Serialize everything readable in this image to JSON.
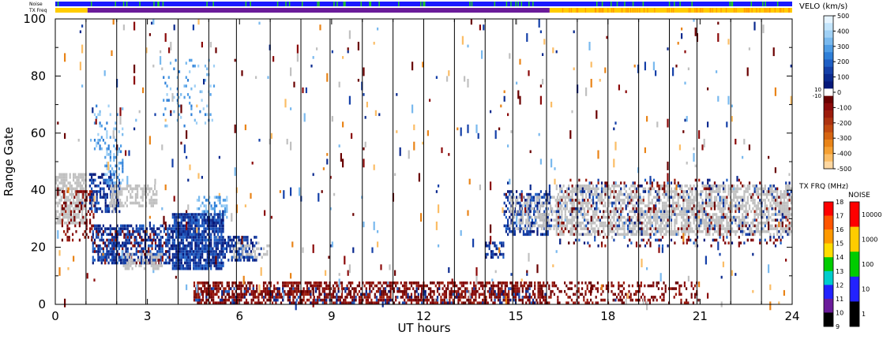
{
  "chart_data": {
    "type": "heatmap",
    "xlabel": "UT hours",
    "ylabel": "Range Gate",
    "xlim": [
      0,
      24
    ],
    "ylim": [
      0,
      100
    ],
    "x_ticks": [
      0,
      3,
      6,
      9,
      12,
      15,
      18,
      21,
      24
    ],
    "y_ticks": [
      0,
      20,
      40,
      60,
      80,
      100
    ],
    "strips": [
      {
        "name": "Noise",
        "colors": [
          "#1a1aff",
          "#22cc22"
        ],
        "segments": [
          [
            0,
            24,
            "#1a1aff"
          ]
        ]
      },
      {
        "name": "TX Freq",
        "segments": [
          [
            0,
            1.05,
            "#ffcc00"
          ],
          [
            1.05,
            16.1,
            "#6a1b9a"
          ],
          [
            16.1,
            24,
            "#ffcc00"
          ]
        ]
      }
    ],
    "velocity_colorbar": {
      "title": "VELO (km/s)",
      "ticks": [
        500,
        400,
        300,
        200,
        100,
        0,
        -100,
        -200,
        -300,
        -400,
        -500
      ],
      "near_zero_labels": [
        "10",
        "-10"
      ],
      "colors_top_to_bottom": [
        "#e6f4ff",
        "#c2e4fb",
        "#9fd0f5",
        "#79b9ee",
        "#4f9de5",
        "#2f7fd8",
        "#1f5fc4",
        "#1540a8",
        "#0b2a8f",
        "#06187a",
        "#ffffff",
        "#6a0000",
        "#8b0a0a",
        "#9c1c0c",
        "#ad3310",
        "#c24a10",
        "#d66512",
        "#e98418",
        "#f5a033",
        "#fbbd66",
        "#fdd7a0"
      ]
    },
    "tx_freq_colorbar": {
      "title": "TX FRQ (MHz)",
      "ticks": [
        18,
        17,
        16,
        15,
        14,
        13,
        12,
        11,
        10,
        9
      ],
      "colors_top_to_bottom": [
        "#ff0000",
        "#ff5500",
        "#ff9900",
        "#ffdd00",
        "#00cc00",
        "#00cccc",
        "#2222ff",
        "#6a1b9a",
        "#000000"
      ]
    },
    "noise_colorbar": {
      "title": "NOISE",
      "ticks": [
        "10000",
        "1000",
        "100",
        "10",
        "1"
      ],
      "colors_top_to_bottom": [
        "#ff0000",
        "#ffcc00",
        "#00cc00",
        "#2222ff",
        "#000000"
      ]
    },
    "scan_boundaries_ut": [
      1.0,
      2.0,
      2.95,
      4.0,
      5.0,
      5.9,
      7.0,
      8.0,
      8.95,
      10.0,
      11.0,
      12.0,
      13.0,
      14.0,
      14.9,
      16.0,
      17.0,
      18.0,
      19.0,
      20.0,
      20.9,
      22.0,
      23.0
    ],
    "echo_regions": [
      {
        "x": [
          0.0,
          1.0
        ],
        "y": [
          28,
          46
        ],
        "kind": "ground-scatter",
        "density": 0.7
      },
      {
        "x": [
          0.2,
          1.3
        ],
        "y": [
          22,
          40
        ],
        "kind": "velocity-negative",
        "density": 0.35
      },
      {
        "x": [
          1.1,
          2.1
        ],
        "y": [
          32,
          46
        ],
        "kind": "velocity-positive",
        "density": 0.55
      },
      {
        "x": [
          1.8,
          3.3
        ],
        "y": [
          34,
          42
        ],
        "kind": "ground-scatter",
        "density": 0.55
      },
      {
        "x": [
          1.6,
          2.2
        ],
        "y": [
          42,
          56
        ],
        "kind": "velocity-positive-light",
        "density": 0.4
      },
      {
        "x": [
          1.2,
          3.8
        ],
        "y": [
          14,
          28
        ],
        "kind": "velocity-positive",
        "density": 0.6
      },
      {
        "x": [
          1.2,
          3.8
        ],
        "y": [
          14,
          26
        ],
        "kind": "velocity-negative",
        "density": 0.12
      },
      {
        "x": [
          2.2,
          3.5
        ],
        "y": [
          12,
          18
        ],
        "kind": "ground-scatter",
        "density": 0.45
      },
      {
        "x": [
          3.8,
          5.5
        ],
        "y": [
          12,
          32
        ],
        "kind": "velocity-positive",
        "density": 0.85
      },
      {
        "x": [
          4.6,
          5.6
        ],
        "y": [
          30,
          38
        ],
        "kind": "velocity-positive-light",
        "density": 0.4
      },
      {
        "x": [
          5.5,
          6.6
        ],
        "y": [
          15,
          24
        ],
        "kind": "velocity-positive",
        "density": 0.55
      },
      {
        "x": [
          5.8,
          7.0
        ],
        "y": [
          16,
          22
        ],
        "kind": "ground-scatter",
        "density": 0.35
      },
      {
        "x": [
          3.5,
          5.2
        ],
        "y": [
          62,
          86
        ],
        "kind": "velocity-positive-light",
        "density": 0.08
      },
      {
        "x": [
          1.2,
          2.2
        ],
        "y": [
          54,
          70
        ],
        "kind": "velocity-positive-light",
        "density": 0.15
      },
      {
        "x": [
          4.5,
          16.0
        ],
        "y": [
          0,
          8
        ],
        "kind": "velocity-negative",
        "density": 0.6
      },
      {
        "x": [
          4.5,
          16.0
        ],
        "y": [
          0,
          6
        ],
        "kind": "velocity-positive",
        "density": 0.1
      },
      {
        "x": [
          16.0,
          21.0
        ],
        "y": [
          0,
          8
        ],
        "kind": "velocity-negative",
        "density": 0.3
      },
      {
        "x": [
          14.6,
          16.2
        ],
        "y": [
          24,
          40
        ],
        "kind": "velocity-positive",
        "density": 0.45
      },
      {
        "x": [
          14.8,
          16.5
        ],
        "y": [
          26,
          38
        ],
        "kind": "ground-scatter",
        "density": 0.4
      },
      {
        "x": [
          14.0,
          14.6
        ],
        "y": [
          16,
          22
        ],
        "kind": "velocity-positive",
        "density": 0.5
      },
      {
        "x": [
          16.3,
          24.0
        ],
        "y": [
          24,
          42
        ],
        "kind": "ground-scatter",
        "density": 0.6
      },
      {
        "x": [
          16.3,
          24.0
        ],
        "y": [
          20,
          44
        ],
        "kind": "velocity-positive",
        "density": 0.08
      },
      {
        "x": [
          16.3,
          24.0
        ],
        "y": [
          20,
          44
        ],
        "kind": "velocity-negative",
        "density": 0.06
      },
      {
        "x": [
          0.0,
          24.0
        ],
        "y": [
          0,
          100
        ],
        "kind": "scattered",
        "density": 0.012
      }
    ]
  }
}
